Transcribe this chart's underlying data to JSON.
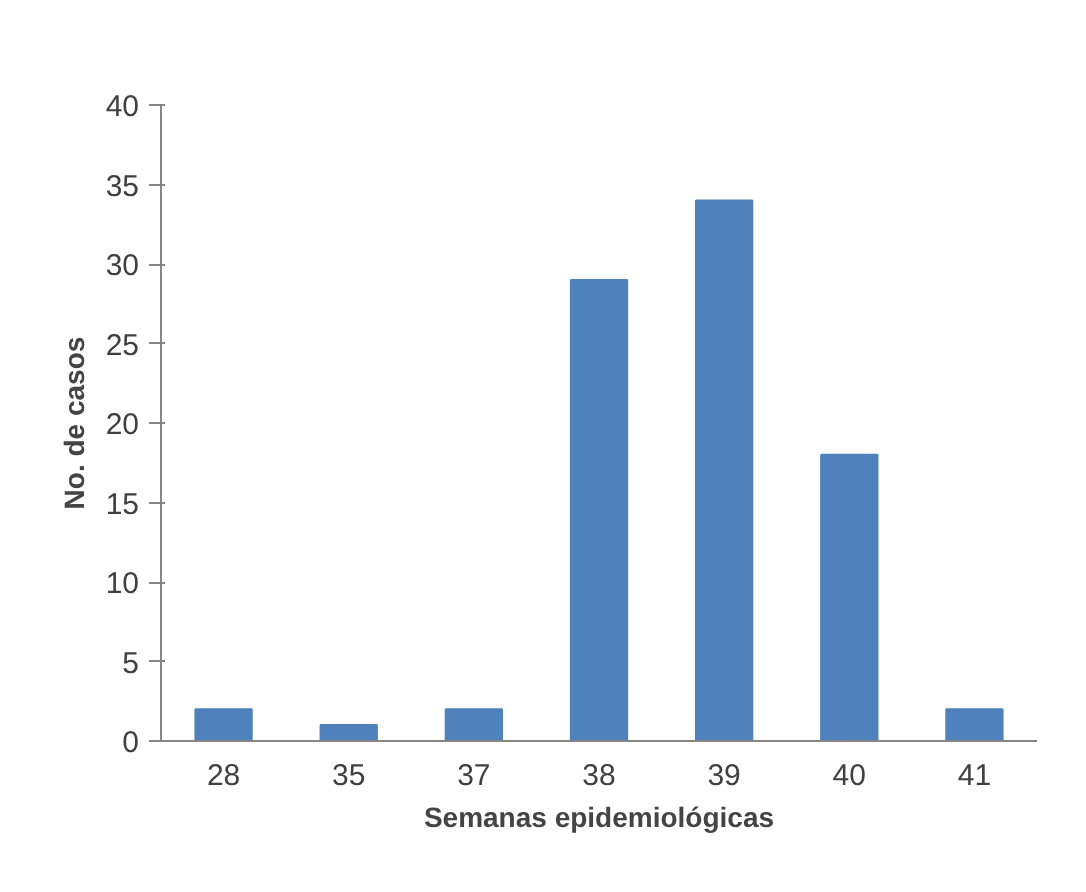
{
  "chart_data": {
    "type": "bar",
    "xlabel": "Semanas epidemiológicas",
    "ylabel": "No. de casos",
    "categories": [
      "28",
      "35",
      "37",
      "38",
      "39",
      "40",
      "41"
    ],
    "values": [
      2,
      1,
      2,
      29,
      34,
      18,
      2
    ],
    "color": "#4f81bd",
    "ylim": [
      0,
      40
    ],
    "yticks": [
      0,
      5,
      10,
      15,
      20,
      25,
      30,
      35,
      40
    ],
    "grid": false
  }
}
